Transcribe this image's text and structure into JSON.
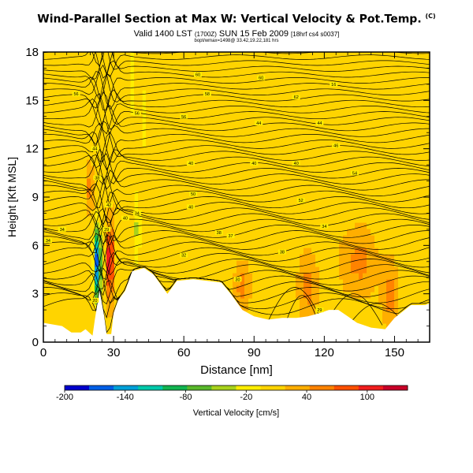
{
  "header": {
    "title": "Wind-Parallel Section at Max W: Vertical Velocity & Pot.Temp.",
    "title_note": "(C)",
    "valid_main": "Valid 1400 LST",
    "valid_utc": "(1700Z)",
    "valid_date": "SUN 15 Feb 2009",
    "valid_run": "[18hrf cs4 s0037]",
    "subline": "bopt/wmax=1498@ 33.42,19.22,181 hrs"
  },
  "chart_data": {
    "type": "heatmap",
    "xlabel": "Distance [nm]",
    "ylabel": "Height [Kft MSL]",
    "xlim": [
      0,
      165
    ],
    "ylim": [
      0,
      18
    ],
    "x_ticks": [
      "0",
      "30",
      "60",
      "90",
      "120",
      "150"
    ],
    "y_ticks": [
      "0",
      "3",
      "6",
      "9",
      "12",
      "15",
      "18"
    ],
    "colorbar": {
      "label": "Vertical Velocity [cm/s]",
      "tick_labels": [
        "-200",
        "-140",
        "-80",
        "-20",
        "40",
        "100"
      ],
      "tick_values": [
        -200,
        -140,
        -80,
        -20,
        40,
        100
      ],
      "range": [
        -200,
        140
      ],
      "colors": [
        "#0000cd",
        "#005fe6",
        "#00a0d8",
        "#00c8aa",
        "#12b450",
        "#59b82b",
        "#a8d21c",
        "#ffee00",
        "#ffd400",
        "#ffae00",
        "#ff8300",
        "#ff5000",
        "#f01e1e",
        "#c80028"
      ],
      "background_color": "#ffee00"
    },
    "terrain": [
      [
        0,
        1.2
      ],
      [
        8,
        1.0
      ],
      [
        12,
        0.6
      ],
      [
        16,
        0.6
      ],
      [
        18,
        0.8
      ],
      [
        21,
        0.4
      ],
      [
        22,
        1.4
      ],
      [
        24,
        3.2
      ],
      [
        26,
        1.6
      ],
      [
        27,
        0.5
      ],
      [
        29,
        0.5
      ],
      [
        30,
        1.8
      ],
      [
        32,
        2.6
      ],
      [
        35,
        3.2
      ],
      [
        38,
        4.4
      ],
      [
        43,
        4.6
      ],
      [
        47,
        4.2
      ],
      [
        50,
        3.6
      ],
      [
        53,
        3.0
      ],
      [
        57,
        3.8
      ],
      [
        64,
        3.9
      ],
      [
        70,
        3.8
      ],
      [
        76,
        3.7
      ],
      [
        80,
        3.0
      ],
      [
        85,
        2.0
      ],
      [
        90,
        1.6
      ],
      [
        96,
        1.4
      ],
      [
        102,
        1.5
      ],
      [
        108,
        1.5
      ],
      [
        113,
        1.6
      ],
      [
        118,
        1.8
      ],
      [
        122,
        2.0
      ],
      [
        126,
        2.0
      ],
      [
        130,
        1.6
      ],
      [
        134,
        1.2
      ],
      [
        140,
        0.9
      ],
      [
        146,
        0.8
      ],
      [
        150,
        1.5
      ],
      [
        157,
        2.3
      ],
      [
        163,
        2.3
      ],
      [
        165,
        2.4
      ]
    ],
    "velocity_features": [
      {
        "x": 23,
        "y": 5.0,
        "sx": 1.6,
        "sy": 2.2,
        "value": -180
      },
      {
        "x": 28.5,
        "y": 5.0,
        "sx": 1.4,
        "sy": 2.0,
        "value": 120
      },
      {
        "x": 40,
        "y": 7.0,
        "sx": 1.5,
        "sy": 2.5,
        "value": -50
      },
      {
        "x": 38,
        "y": 16.0,
        "sx": 1.2,
        "sy": 2.5,
        "value": -40
      },
      {
        "x": 43,
        "y": 14.0,
        "sx": 1.2,
        "sy": 3.0,
        "value": -30
      },
      {
        "x": 54,
        "y": 8.0,
        "sx": 1.3,
        "sy": 2.0,
        "value": -25
      },
      {
        "x": 79,
        "y": 7.5,
        "sx": 1.5,
        "sy": 1.5,
        "value": -20
      },
      {
        "x": 98,
        "y": 10.0,
        "sx": 1.5,
        "sy": 2.0,
        "value": -20
      },
      {
        "x": 128,
        "y": 16.5,
        "sx": 1.5,
        "sy": 1.8,
        "value": -20
      },
      {
        "x": 143,
        "y": 8.0,
        "sx": 1.5,
        "sy": 1.5,
        "value": -20
      },
      {
        "x": 85,
        "y": 3.5,
        "sx": 2.5,
        "sy": 1.0,
        "value": 45
      },
      {
        "x": 113,
        "y": 3.5,
        "sx": 3.0,
        "sy": 1.5,
        "value": 45
      },
      {
        "x": 148,
        "y": 3.0,
        "sx": 2.5,
        "sy": 1.5,
        "value": 50
      },
      {
        "x": 135,
        "y": 5.0,
        "sx": 6.0,
        "sy": 1.5,
        "value": 40
      },
      {
        "x": 20,
        "y": 9.5,
        "sx": 1.2,
        "sy": 1.2,
        "value": 45
      }
    ],
    "contour_labels": [
      {
        "text": "20",
        "x": 22,
        "y": 2.6
      },
      {
        "text": "29",
        "x": 27,
        "y": 7.0
      },
      {
        "x": 40,
        "y": 8.0,
        "text": "34"
      },
      {
        "text": "34",
        "x": 8,
        "y": 7.0
      },
      {
        "text": "34",
        "x": 2,
        "y": 6.3
      },
      {
        "text": "42",
        "x": 28,
        "y": 8.5
      },
      {
        "text": "40",
        "x": 35,
        "y": 7.7
      },
      {
        "text": "40",
        "x": 63,
        "y": 8.4
      },
      {
        "text": "50",
        "x": 64,
        "y": 9.2
      },
      {
        "text": "44",
        "x": 22,
        "y": 12.0
      },
      {
        "text": "38",
        "x": 23,
        "y": 10.2
      },
      {
        "text": "40",
        "x": 63,
        "y": 11.1
      },
      {
        "text": "40",
        "x": 90,
        "y": 11.1
      },
      {
        "text": "40",
        "x": 108,
        "y": 11.1
      },
      {
        "text": "44",
        "x": 92,
        "y": 13.6
      },
      {
        "text": "44",
        "x": 118,
        "y": 13.6
      },
      {
        "text": "46",
        "x": 125,
        "y": 12.2
      },
      {
        "text": "56",
        "x": 40,
        "y": 14.2
      },
      {
        "text": "56",
        "x": 14,
        "y": 15.4
      },
      {
        "text": "58",
        "x": 70,
        "y": 15.4
      },
      {
        "text": "60",
        "x": 93,
        "y": 16.4
      },
      {
        "text": "60",
        "x": 66,
        "y": 16.6
      },
      {
        "text": "62",
        "x": 108,
        "y": 15.2
      },
      {
        "text": "56",
        "x": 60,
        "y": 14.0
      },
      {
        "text": "16",
        "x": 124,
        "y": 16.0
      },
      {
        "text": "54",
        "x": 133,
        "y": 10.5
      },
      {
        "text": "52",
        "x": 110,
        "y": 8.8
      },
      {
        "text": "37",
        "x": 80,
        "y": 6.6
      },
      {
        "x": 75,
        "y": 6.8,
        "text": "38"
      },
      {
        "text": "38",
        "x": 102,
        "y": 5.6
      },
      {
        "text": "34",
        "x": 120,
        "y": 7.2
      },
      {
        "text": "32",
        "x": 60,
        "y": 5.4
      },
      {
        "text": "30",
        "x": 83,
        "y": 3.9
      },
      {
        "text": "29",
        "x": 118,
        "y": 2.0
      }
    ]
  }
}
